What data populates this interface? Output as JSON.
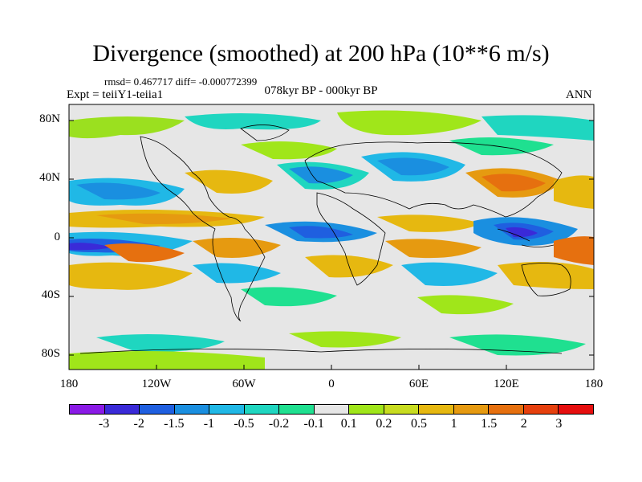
{
  "title": "Divergence (smoothed) at 200 hPa (10**6 m/s)",
  "stats": "rmsd= 0.467717 diff= -0.000772399",
  "experiment": "Expt = teiiY1-teiia1",
  "period": "078kyr BP - 000kyr BP",
  "season": "ANN",
  "lat_labels": [
    "80N",
    "40N",
    "0",
    "40S",
    "80S"
  ],
  "lon_labels": [
    "180",
    "120W",
    "60W",
    "0",
    "60E",
    "120E",
    "180"
  ],
  "colorbar": {
    "colors": [
      "#8a1ae6",
      "#3a2ad8",
      "#1f5fe0",
      "#1a8fe0",
      "#20b8e6",
      "#1fd6c0",
      "#1fe090",
      "#e6e6e6",
      "#a0e61a",
      "#c8dc20",
      "#e6b810",
      "#e69a10",
      "#e6700f",
      "#e6400e",
      "#e60f0f"
    ],
    "labels": [
      "-3",
      "-2",
      "-1.5",
      "-1",
      "-0.5",
      "-0.2",
      "-0.1",
      "0.1",
      "0.2",
      "0.5",
      "1",
      "1.5",
      "2",
      "3"
    ]
  }
}
